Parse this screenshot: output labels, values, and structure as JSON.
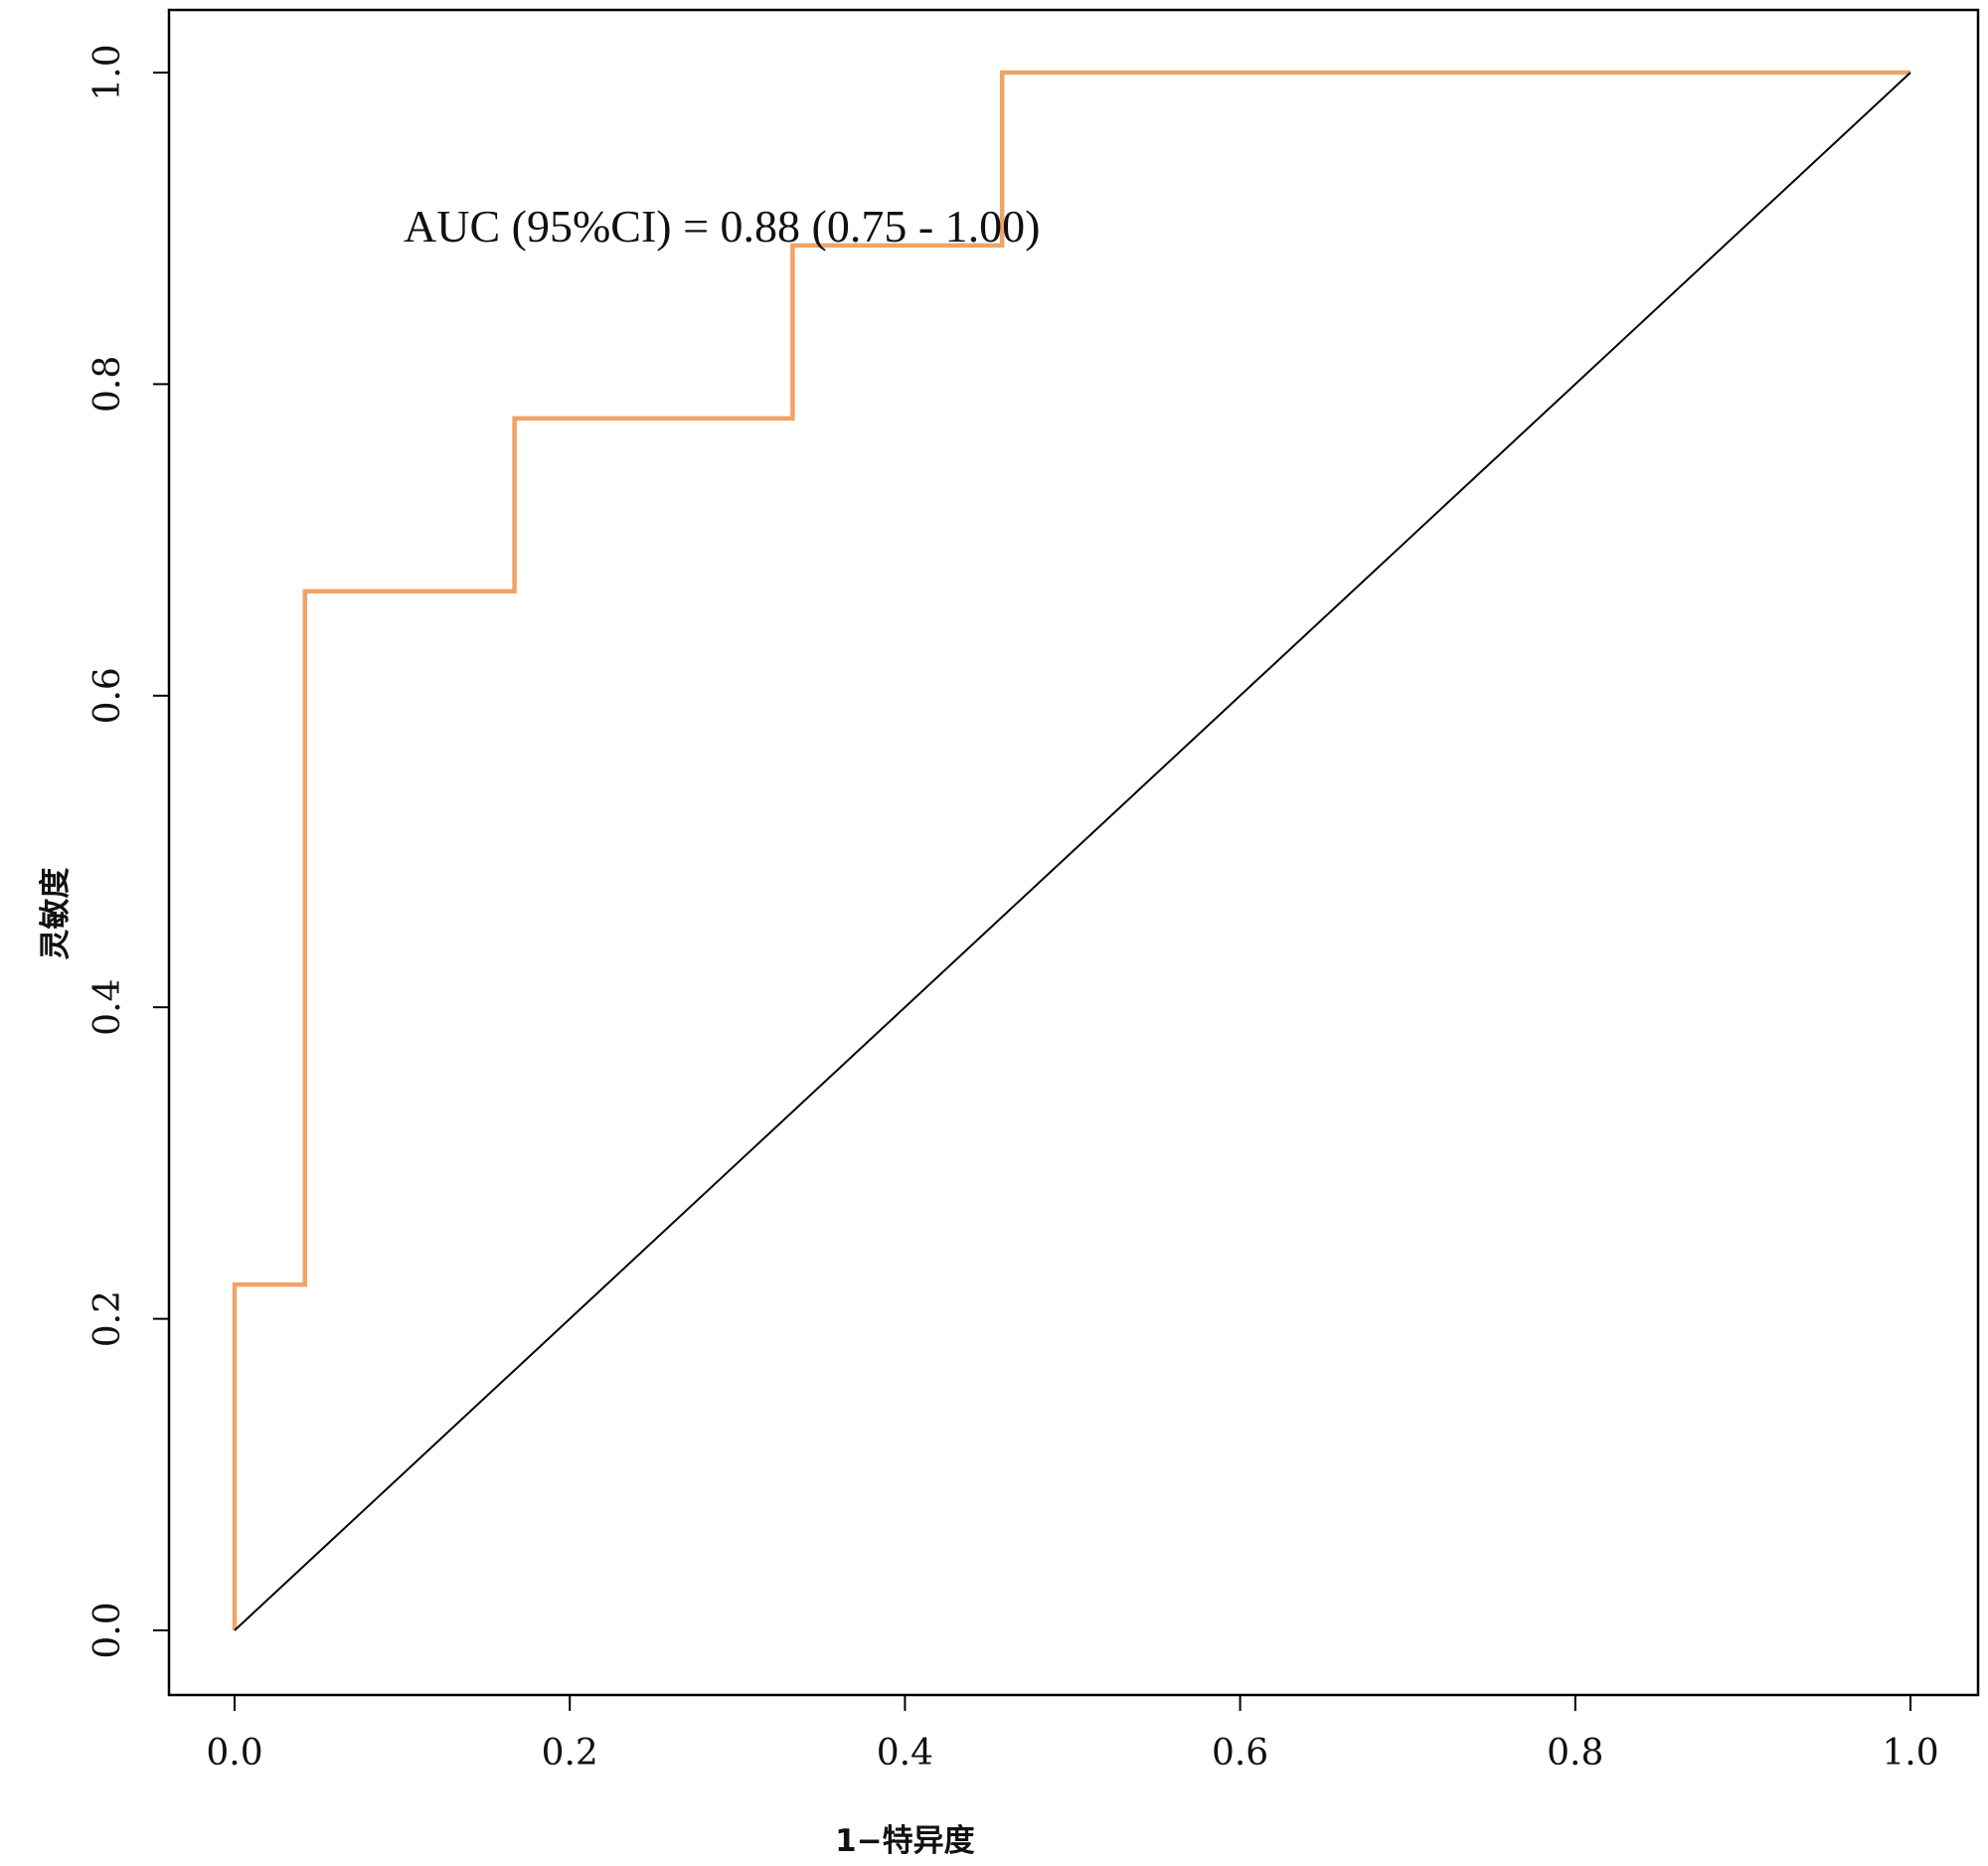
{
  "chart_data": {
    "type": "line",
    "title": "",
    "xlabel": "1−特异度",
    "ylabel": "灵敏度",
    "xlim": [
      0,
      1
    ],
    "ylim": [
      0,
      1
    ],
    "x_ticks": [
      "0.0",
      "0.2",
      "0.4",
      "0.6",
      "0.8",
      "1.0"
    ],
    "y_ticks": [
      "0.0",
      "0.2",
      "0.4",
      "0.6",
      "0.8",
      "1.0"
    ],
    "grid": false,
    "annotation": "AUC (95%CI) = 0.88 (0.75 - 1.00)",
    "series": [
      {
        "color": "#f0a366",
        "step": true,
        "x": [
          0.0,
          0.0,
          0.042,
          0.042,
          0.167,
          0.167,
          0.333,
          0.333,
          0.458,
          0.458,
          1.0
        ],
        "y": [
          0.0,
          0.222,
          0.222,
          0.667,
          0.667,
          0.778,
          0.778,
          0.889,
          0.889,
          1.0,
          1.0
        ]
      },
      {
        "color": "#000000",
        "reference": true,
        "x": [
          0.0,
          1.0
        ],
        "y": [
          0.0,
          1.0
        ]
      }
    ]
  }
}
